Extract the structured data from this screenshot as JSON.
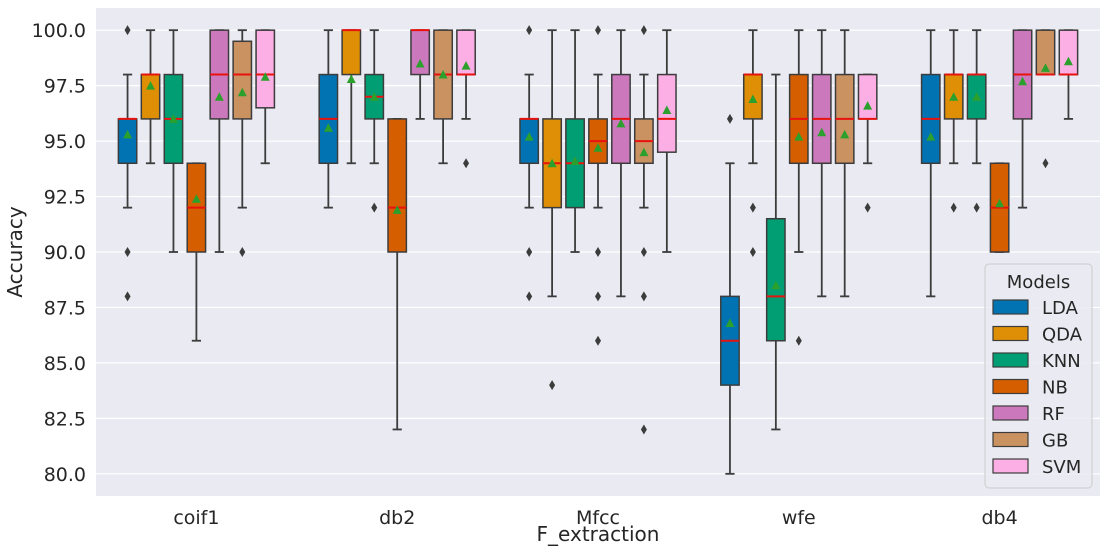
{
  "chart_data": {
    "type": "box",
    "xlabel": "F_extraction",
    "ylabel": "Accuracy",
    "ylim": [
      79.0,
      101.0
    ],
    "yticks": [
      "80.0",
      "82.5",
      "85.0",
      "87.5",
      "90.0",
      "92.5",
      "95.0",
      "97.5",
      "100.0"
    ],
    "ytick_values": [
      80.0,
      82.5,
      85.0,
      87.5,
      90.0,
      92.5,
      95.0,
      97.5,
      100.0
    ],
    "categories": [
      "coif1",
      "db2",
      "Mfcc",
      "wfe",
      "db4"
    ],
    "grid": true,
    "legend": {
      "title": "Models",
      "placement": "lower-right"
    },
    "median_color": "#e8120f",
    "mean_marker_color": "#2ca02c",
    "series": [
      {
        "name": "LDA",
        "color": "#0173b2",
        "boxes": [
          {
            "whislo": 92,
            "q1": 94,
            "med": 96,
            "q3": 96,
            "whishi": 98,
            "mean": 95.3,
            "fliers": [
              100,
              90,
              88
            ]
          },
          {
            "whislo": 92,
            "q1": 94,
            "med": 96,
            "q3": 98,
            "whishi": 100,
            "mean": 95.6,
            "fliers": []
          },
          {
            "whislo": 92,
            "q1": 94,
            "med": 96,
            "q3": 96,
            "whishi": 98,
            "mean": 95.2,
            "fliers": [
              100,
              90,
              88
            ]
          },
          {
            "whislo": 80,
            "q1": 84,
            "med": 86,
            "q3": 88,
            "whishi": 94,
            "mean": 86.8,
            "fliers": [
              96
            ]
          },
          {
            "whislo": 88,
            "q1": 94,
            "med": 96,
            "q3": 98,
            "whishi": 100,
            "mean": 95.2,
            "fliers": []
          }
        ]
      },
      {
        "name": "QDA",
        "color": "#de8f05",
        "boxes": [
          {
            "whislo": 94,
            "q1": 96,
            "med": 98,
            "q3": 98,
            "whishi": 100,
            "mean": 97.5,
            "fliers": []
          },
          {
            "whislo": 94,
            "q1": 98,
            "med": 100,
            "q3": 100,
            "whishi": 100,
            "mean": 97.8,
            "fliers": []
          },
          {
            "whislo": 88,
            "q1": 92,
            "med": 94,
            "q3": 96,
            "whishi": 100,
            "mean": 94.0,
            "fliers": [
              84
            ]
          },
          {
            "whislo": 94,
            "q1": 96,
            "med": 98,
            "q3": 98,
            "whishi": 100,
            "mean": 96.9,
            "fliers": [
              92,
              90
            ]
          },
          {
            "whislo": 94,
            "q1": 96,
            "med": 98,
            "q3": 98,
            "whishi": 100,
            "mean": 97.0,
            "fliers": [
              92
            ]
          }
        ]
      },
      {
        "name": "KNN",
        "color": "#029e73",
        "boxes": [
          {
            "whislo": 90,
            "q1": 94,
            "med": 96,
            "q3": 98,
            "whishi": 100,
            "mean": 96.0,
            "fliers": []
          },
          {
            "whislo": 94,
            "q1": 96,
            "med": 97,
            "q3": 98,
            "whishi": 100,
            "mean": 97.0,
            "fliers": [
              92
            ]
          },
          {
            "whislo": 90,
            "q1": 92,
            "med": 94,
            "q3": 96,
            "whishi": 100,
            "mean": 94.1,
            "fliers": []
          },
          {
            "whislo": 82,
            "q1": 86,
            "med": 88,
            "q3": 91.5,
            "whishi": 98,
            "mean": 88.5,
            "fliers": []
          },
          {
            "whislo": 94,
            "q1": 96,
            "med": 98,
            "q3": 98,
            "whishi": 100,
            "mean": 97.0,
            "fliers": [
              92
            ]
          }
        ]
      },
      {
        "name": "NB",
        "color": "#d55e00",
        "boxes": [
          {
            "whislo": 86,
            "q1": 90,
            "med": 92,
            "q3": 94,
            "whishi": 94,
            "mean": 92.4,
            "fliers": []
          },
          {
            "whislo": 82,
            "q1": 90,
            "med": 92,
            "q3": 96,
            "whishi": 96,
            "mean": 91.9,
            "fliers": []
          },
          {
            "whislo": 92,
            "q1": 94,
            "med": 95,
            "q3": 96,
            "whishi": 98,
            "mean": 94.7,
            "fliers": [
              100,
              90,
              88,
              86
            ]
          },
          {
            "whislo": 90,
            "q1": 94,
            "med": 96,
            "q3": 98,
            "whishi": 100,
            "mean": 95.2,
            "fliers": [
              86
            ]
          },
          {
            "whislo": 90,
            "q1": 90,
            "med": 92,
            "q3": 94,
            "whishi": 94,
            "mean": 92.2,
            "fliers": []
          }
        ]
      },
      {
        "name": "RF",
        "color": "#cc78bc",
        "boxes": [
          {
            "whislo": 90,
            "q1": 96,
            "med": 98,
            "q3": 100,
            "whishi": 100,
            "mean": 97.0,
            "fliers": []
          },
          {
            "whislo": 96,
            "q1": 98,
            "med": 100,
            "q3": 100,
            "whishi": 100,
            "mean": 98.5,
            "fliers": []
          },
          {
            "whislo": 88,
            "q1": 94,
            "med": 96,
            "q3": 98,
            "whishi": 100,
            "mean": 95.8,
            "fliers": []
          },
          {
            "whislo": 88,
            "q1": 94,
            "med": 96,
            "q3": 98,
            "whishi": 100,
            "mean": 95.4,
            "fliers": []
          },
          {
            "whislo": 92,
            "q1": 96,
            "med": 98,
            "q3": 100,
            "whishi": 100,
            "mean": 97.7,
            "fliers": []
          }
        ]
      },
      {
        "name": "GB",
        "color": "#ca9161",
        "boxes": [
          {
            "whislo": 92,
            "q1": 96,
            "med": 98,
            "q3": 99.5,
            "whishi": 100,
            "mean": 97.2,
            "fliers": [
              90
            ]
          },
          {
            "whislo": 94,
            "q1": 96,
            "med": 98,
            "q3": 100,
            "whishi": 100,
            "mean": 98.0,
            "fliers": []
          },
          {
            "whislo": 92,
            "q1": 94,
            "med": 95,
            "q3": 96,
            "whishi": 98,
            "mean": 94.5,
            "fliers": [
              100,
              90,
              88,
              82
            ]
          },
          {
            "whislo": 88,
            "q1": 94,
            "med": 96,
            "q3": 98,
            "whishi": 100,
            "mean": 95.3,
            "fliers": []
          },
          {
            "whislo": 98,
            "q1": 98,
            "med": 98,
            "q3": 100,
            "whishi": 100,
            "mean": 98.3,
            "fliers": [
              94
            ]
          }
        ]
      },
      {
        "name": "SVM",
        "color": "#fbafe4",
        "boxes": [
          {
            "whislo": 94,
            "q1": 96.5,
            "med": 98,
            "q3": 100,
            "whishi": 100,
            "mean": 97.9,
            "fliers": []
          },
          {
            "whislo": 96,
            "q1": 98,
            "med": 98,
            "q3": 100,
            "whishi": 100,
            "mean": 98.4,
            "fliers": [
              94
            ]
          },
          {
            "whislo": 90,
            "q1": 94.5,
            "med": 96,
            "q3": 98,
            "whishi": 100,
            "mean": 96.4,
            "fliers": []
          },
          {
            "whislo": 94,
            "q1": 96,
            "med": 96,
            "q3": 98,
            "whishi": 98,
            "mean": 96.6,
            "fliers": [
              92
            ]
          },
          {
            "whislo": 96,
            "q1": 98,
            "med": 98,
            "q3": 100,
            "whishi": 100,
            "mean": 98.6,
            "fliers": []
          }
        ]
      }
    ]
  }
}
